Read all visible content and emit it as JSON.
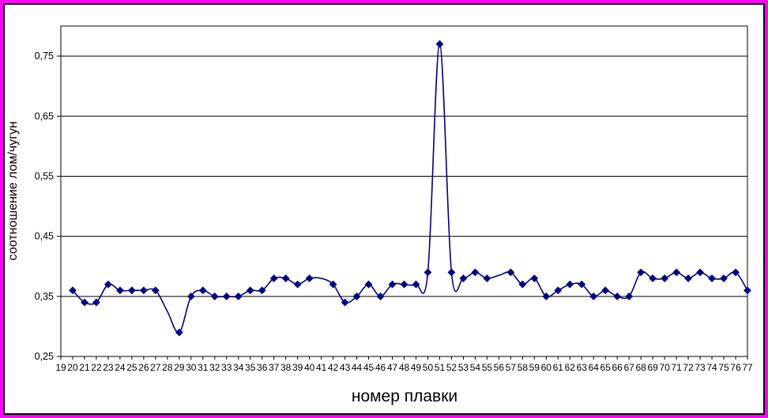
{
  "chart_data": {
    "type": "line",
    "title": "",
    "xlabel": "номер плавки",
    "ylabel": "соотношение лом/чугун",
    "categories": [
      "19",
      "20",
      "21",
      "22",
      "23",
      "24",
      "25",
      "26",
      "27",
      "28",
      "29",
      "30",
      "31",
      "32",
      "33",
      "34",
      "35",
      "36",
      "37",
      "38",
      "39",
      "40",
      "41",
      "42",
      "43",
      "44",
      "45",
      "46",
      "47",
      "48",
      "49",
      "50",
      "51",
      "52",
      "53",
      "54",
      "55",
      "56",
      "57",
      "58",
      "59",
      "60",
      "61",
      "62",
      "63",
      "64",
      "65",
      "66",
      "67",
      "68",
      "69",
      "70",
      "71",
      "72",
      "73",
      "74",
      "75",
      "76",
      "77"
    ],
    "values": [
      null,
      0.36,
      0.34,
      0.34,
      0.37,
      0.36,
      0.36,
      0.36,
      0.36,
      0.325,
      0.29,
      0.35,
      0.36,
      0.35,
      0.35,
      0.35,
      0.36,
      0.36,
      0.38,
      0.38,
      0.37,
      0.38,
      0.38,
      0.37,
      0.34,
      0.35,
      0.37,
      0.35,
      0.37,
      0.37,
      0.37,
      0.39,
      0.77,
      0.39,
      0.38,
      0.39,
      0.38,
      0.385,
      0.39,
      0.37,
      0.38,
      0.35,
      0.36,
      0.37,
      0.37,
      0.35,
      0.36,
      0.35,
      0.35,
      0.39,
      0.38,
      0.38,
      0.39,
      0.38,
      0.39,
      0.38,
      0.38,
      0.39,
      0.36
    ],
    "no_marker_categories": [
      28,
      41,
      56
    ],
    "smoothed": true,
    "ylim": [
      0.25,
      0.8
    ],
    "ytick_values": [
      0.25,
      0.35,
      0.45,
      0.55,
      0.65,
      0.75
    ],
    "ytick_labels": [
      "0,25",
      "0,35",
      "0,45",
      "0,55",
      "0,65",
      "0,75"
    ],
    "grid": true,
    "legend": "none",
    "line_color": "#000080",
    "marker_shape": "diamond",
    "frame_color": "#FF00FF",
    "axis_color": "#000000"
  }
}
